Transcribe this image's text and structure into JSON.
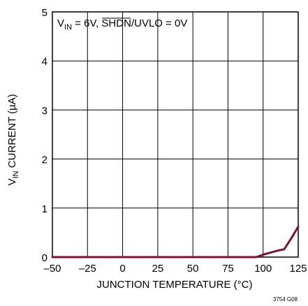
{
  "chart_data": {
    "type": "line",
    "annotation": {
      "v_main": "V",
      "v_sub": "IN",
      "pre": " = 6V, ",
      "overbar": "SHDN",
      "post": "/UVLO = 0V"
    },
    "xlabel": "JUNCTION TEMPERATURE (°C)",
    "ylabel": {
      "main": "V",
      "sub": "IN",
      "rest": " CURRENT (µA)"
    },
    "xlim": [
      -50,
      125
    ],
    "ylim": [
      0,
      5
    ],
    "x_ticks": [
      "–50",
      "–25",
      "0",
      "25",
      "50",
      "75",
      "100",
      "125"
    ],
    "x_tick_values": [
      -50,
      -25,
      0,
      25,
      50,
      75,
      100,
      125
    ],
    "y_ticks": [
      "0",
      "1",
      "2",
      "3",
      "4",
      "5"
    ],
    "y_tick_values": [
      0,
      1,
      2,
      3,
      4,
      5
    ],
    "grid": true,
    "series": [
      {
        "color": "#7a1430",
        "x": [
          -50,
          -25,
          0,
          25,
          50,
          75,
          95,
          100,
          105,
          110,
          115,
          120,
          125
        ],
        "y": [
          0,
          0,
          0,
          0,
          0,
          0,
          0,
          0.05,
          0.09,
          0.13,
          0.16,
          0.38,
          0.62
        ]
      }
    ],
    "figure_id": "3754 G08"
  }
}
